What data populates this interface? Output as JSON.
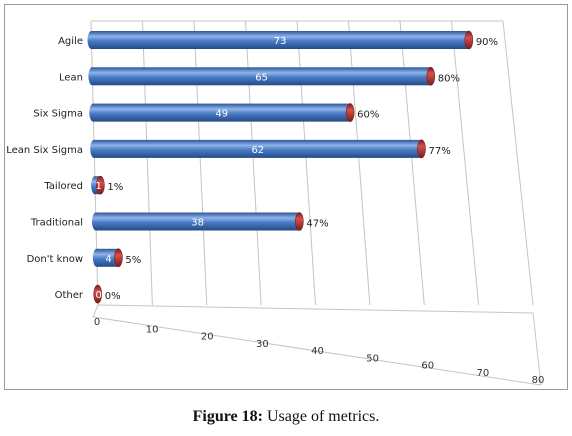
{
  "chart_data": {
    "type": "bar",
    "orientation": "horizontal",
    "style": "3d-cylinder",
    "categories": [
      "Agile",
      "Lean",
      "Six Sigma",
      "Lean Six Sigma",
      "Tailored",
      "Traditional",
      "Don't know",
      "Other"
    ],
    "values": [
      73,
      65,
      49,
      62,
      1,
      38,
      4,
      0
    ],
    "percent_labels": [
      "90%",
      "80%",
      "60%",
      "77%",
      "1%",
      "47%",
      "5%",
      "0%"
    ],
    "xlim": [
      0,
      80
    ],
    "x_ticks": [
      "0",
      "10",
      "20",
      "30",
      "40",
      "50",
      "60",
      "70",
      "80"
    ],
    "grid": true,
    "colors": {
      "bar": "#4a7cc6",
      "bar_light": "#8fb4ea",
      "bar_dark": "#2c5596",
      "cap": "#b8322f",
      "cap_dark": "#7a1c1a"
    }
  },
  "caption": {
    "label": "Figure 18:",
    "text": " Usage of metrics."
  }
}
